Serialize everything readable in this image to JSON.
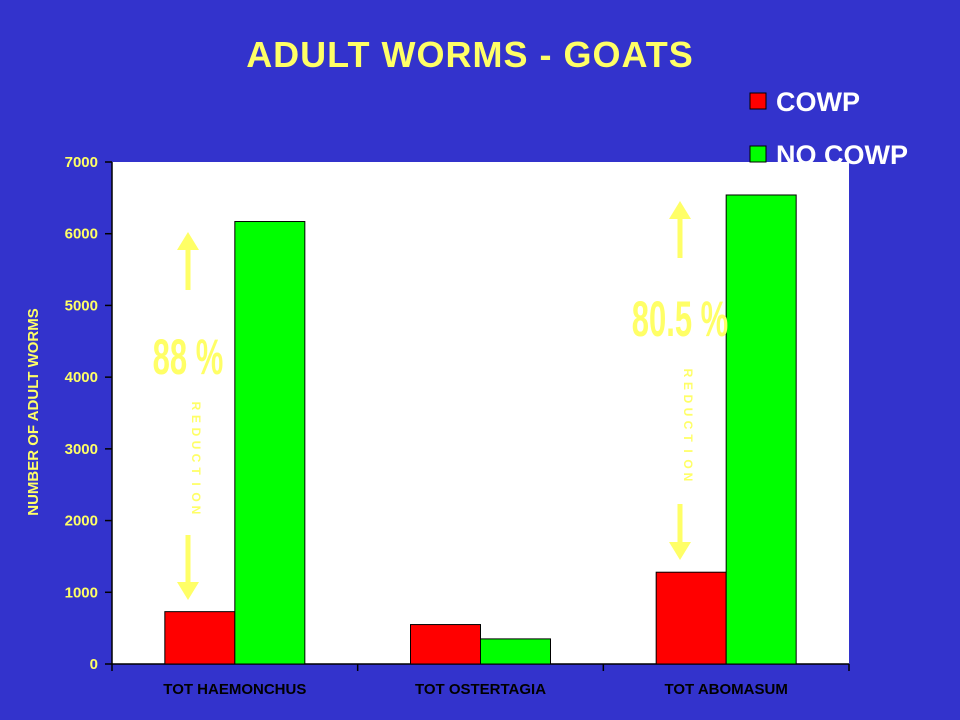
{
  "chart_data": {
    "type": "bar",
    "title": "ADULT WORMS - GOATS",
    "ylabel": "NUMBER OF ADULT WORMS",
    "xlabel": "",
    "categories": [
      "TOT HAEMONCHUS",
      "TOT OSTERTAGIA",
      "TOT ABOMASUM"
    ],
    "series": [
      {
        "name": "COWP",
        "color": "#ff0000",
        "values": [
          730,
          550,
          1280
        ]
      },
      {
        "name": "NO COWP",
        "color": "#00ff00",
        "values": [
          6170,
          350,
          6540
        ]
      }
    ],
    "ylim": [
      0,
      7000
    ],
    "yticks": [
      0,
      1000,
      2000,
      3000,
      4000,
      5000,
      6000,
      7000
    ],
    "grid": false,
    "legend_position": "top-right",
    "plot_background": "#ffffff",
    "annotations": [
      {
        "category": "TOT HAEMONCHUS",
        "percent": "88 %",
        "word": "REDUCTION"
      },
      {
        "category": "TOT ABOMASUM",
        "percent": "80.5 %",
        "word": "REDUCTION"
      }
    ]
  }
}
